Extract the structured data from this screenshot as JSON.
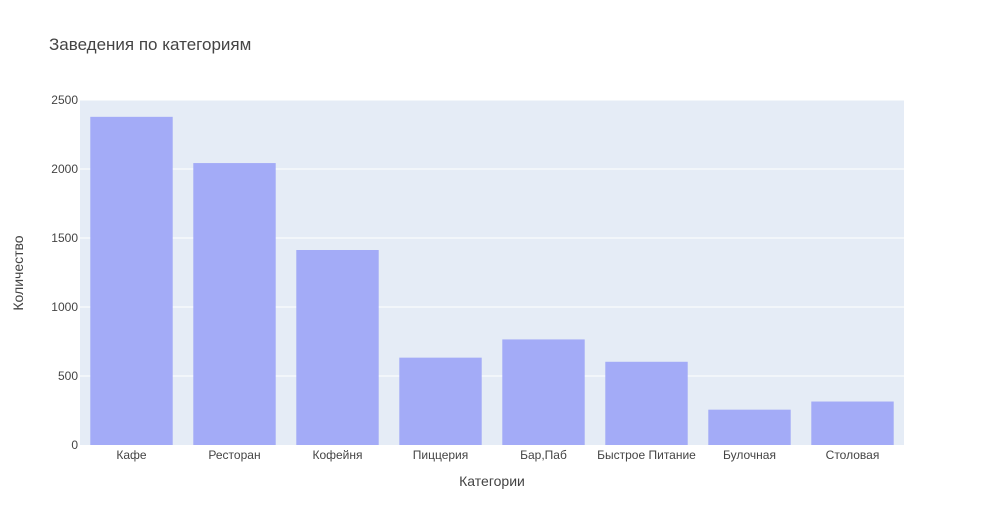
{
  "chart_data": {
    "type": "bar",
    "title": "Заведения по категориям",
    "xlabel": "Категории",
    "ylabel": "Количество",
    "categories": [
      "Кафе",
      "Ресторан",
      "Кофейня",
      "Пиццерия",
      "Бар,Паб",
      "Быстрое Питание",
      "Булочная",
      "Столовая"
    ],
    "values": [
      2378,
      2043,
      1413,
      633,
      765,
      603,
      256,
      315
    ],
    "ylim": [
      0,
      2500
    ],
    "yticks": [
      0,
      500,
      1000,
      1500,
      2000,
      2500
    ],
    "ytick_labels": [
      "0",
      "500",
      "1000",
      "1500",
      "2000",
      "2500"
    ],
    "grid": true,
    "colors": {
      "bar": "#a3abf7",
      "plot_background": "#e5ecf6",
      "grid": "#ffffff",
      "text": "#444444"
    }
  }
}
